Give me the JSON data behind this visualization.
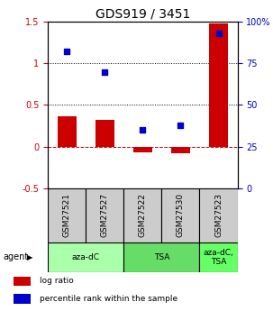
{
  "title": "GDS919 / 3451",
  "samples": [
    "GSM27521",
    "GSM27527",
    "GSM27522",
    "GSM27530",
    "GSM27523"
  ],
  "log_ratio": [
    0.36,
    0.32,
    -0.07,
    -0.08,
    1.48
  ],
  "percentile_rank": [
    82,
    70,
    35,
    38,
    93
  ],
  "ylim_left": [
    -0.5,
    1.5
  ],
  "ylim_right": [
    0,
    100
  ],
  "yticks_left": [
    -0.5,
    0,
    0.5,
    1.0,
    1.5
  ],
  "yticks_right": [
    0,
    25,
    50,
    75,
    100
  ],
  "hlines": [
    0.0,
    0.5,
    1.0
  ],
  "hline_styles": [
    "dashed",
    "dotted",
    "dotted"
  ],
  "hline_colors": [
    "#cc0000",
    "#000000",
    "#000000"
  ],
  "bar_color": "#cc0000",
  "dot_color": "#0000cc",
  "agent_groups": [
    {
      "label": "aza-dC",
      "start": 0,
      "end": 2,
      "color": "#aaffaa"
    },
    {
      "label": "TSA",
      "start": 2,
      "end": 4,
      "color": "#66dd66"
    },
    {
      "label": "aza-dC,\nTSA",
      "start": 4,
      "end": 5,
      "color": "#66ff66"
    }
  ],
  "legend_items": [
    {
      "color": "#cc0000",
      "label": "log ratio"
    },
    {
      "color": "#0000cc",
      "label": "percentile rank within the sample"
    }
  ],
  "bar_width": 0.5,
  "title_fontsize": 10,
  "tick_fontsize": 7,
  "label_fontsize": 7,
  "agent_label": "agent",
  "background_color": "#ffffff"
}
